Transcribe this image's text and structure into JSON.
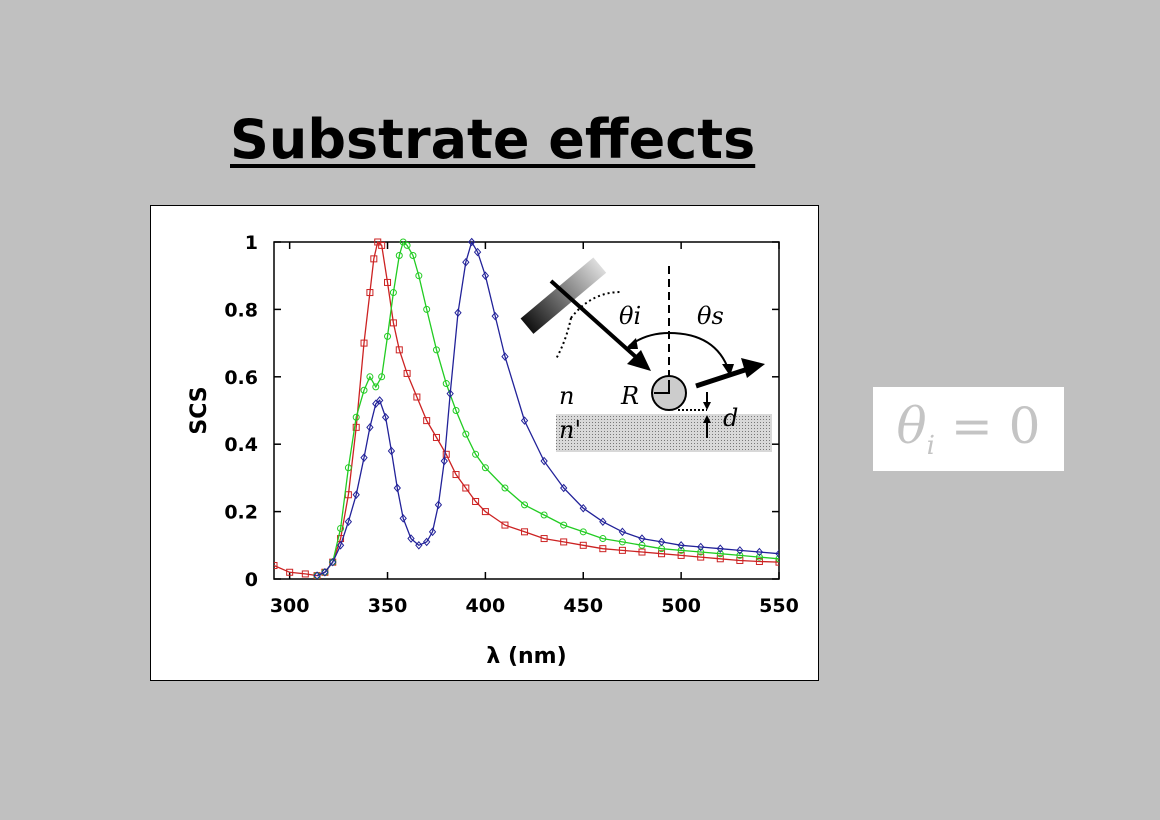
{
  "slide": {
    "title": "Substrate effects",
    "formula": {
      "symbol": "θ",
      "subscript": "i",
      "relation": "= 0"
    }
  },
  "chart_data": {
    "type": "line",
    "xlabel": "λ (nm)",
    "ylabel": "SCS",
    "xlim": [
      292,
      550
    ],
    "ylim": [
      0,
      1
    ],
    "x_ticks": [
      "300",
      "350",
      "400",
      "450",
      "500",
      "550"
    ],
    "x_tick_values": [
      300,
      350,
      400,
      450,
      500,
      550
    ],
    "y_ticks": [
      "0",
      "0.2",
      "0.4",
      "0.6",
      "0.8",
      "1"
    ],
    "y_tick_values": [
      0,
      0.2,
      0.4,
      0.6,
      0.8,
      1
    ],
    "grid": false,
    "legend": "none",
    "series": [
      {
        "color": "#cc2222",
        "marker": "square",
        "points": [
          [
            292,
            0.04
          ],
          [
            300,
            0.02
          ],
          [
            308,
            0.015
          ],
          [
            314,
            0.01
          ],
          [
            318,
            0.02
          ],
          [
            322,
            0.05
          ],
          [
            326,
            0.12
          ],
          [
            330,
            0.25
          ],
          [
            334,
            0.45
          ],
          [
            338,
            0.7
          ],
          [
            341,
            0.85
          ],
          [
            343,
            0.95
          ],
          [
            345,
            1.0
          ],
          [
            347,
            0.99
          ],
          [
            350,
            0.88
          ],
          [
            353,
            0.76
          ],
          [
            356,
            0.68
          ],
          [
            360,
            0.61
          ],
          [
            365,
            0.54
          ],
          [
            370,
            0.47
          ],
          [
            375,
            0.42
          ],
          [
            380,
            0.37
          ],
          [
            385,
            0.31
          ],
          [
            390,
            0.27
          ],
          [
            395,
            0.23
          ],
          [
            400,
            0.2
          ],
          [
            410,
            0.16
          ],
          [
            420,
            0.14
          ],
          [
            430,
            0.12
          ],
          [
            440,
            0.11
          ],
          [
            450,
            0.1
          ],
          [
            460,
            0.09
          ],
          [
            470,
            0.085
          ],
          [
            480,
            0.08
          ],
          [
            490,
            0.075
          ],
          [
            500,
            0.07
          ],
          [
            510,
            0.065
          ],
          [
            520,
            0.06
          ],
          [
            530,
            0.055
          ],
          [
            540,
            0.052
          ],
          [
            550,
            0.05
          ]
        ]
      },
      {
        "color": "#22cc22",
        "marker": "circle",
        "points": [
          [
            314,
            0.01
          ],
          [
            318,
            0.02
          ],
          [
            322,
            0.05
          ],
          [
            326,
            0.15
          ],
          [
            330,
            0.33
          ],
          [
            334,
            0.48
          ],
          [
            338,
            0.56
          ],
          [
            341,
            0.6
          ],
          [
            344,
            0.57
          ],
          [
            347,
            0.6
          ],
          [
            350,
            0.72
          ],
          [
            353,
            0.85
          ],
          [
            356,
            0.96
          ],
          [
            358,
            1.0
          ],
          [
            360,
            0.99
          ],
          [
            363,
            0.96
          ],
          [
            366,
            0.9
          ],
          [
            370,
            0.8
          ],
          [
            375,
            0.68
          ],
          [
            380,
            0.58
          ],
          [
            385,
            0.5
          ],
          [
            390,
            0.43
          ],
          [
            395,
            0.37
          ],
          [
            400,
            0.33
          ],
          [
            410,
            0.27
          ],
          [
            420,
            0.22
          ],
          [
            430,
            0.19
          ],
          [
            440,
            0.16
          ],
          [
            450,
            0.14
          ],
          [
            460,
            0.12
          ],
          [
            470,
            0.11
          ],
          [
            480,
            0.1
          ],
          [
            490,
            0.09
          ],
          [
            500,
            0.085
          ],
          [
            510,
            0.08
          ],
          [
            520,
            0.075
          ],
          [
            530,
            0.07
          ],
          [
            540,
            0.065
          ],
          [
            550,
            0.06
          ]
        ]
      },
      {
        "color": "#222299",
        "marker": "diamond",
        "points": [
          [
            314,
            0.01
          ],
          [
            318,
            0.02
          ],
          [
            322,
            0.05
          ],
          [
            326,
            0.1
          ],
          [
            330,
            0.17
          ],
          [
            334,
            0.25
          ],
          [
            338,
            0.36
          ],
          [
            341,
            0.45
          ],
          [
            344,
            0.52
          ],
          [
            346,
            0.53
          ],
          [
            349,
            0.48
          ],
          [
            352,
            0.38
          ],
          [
            355,
            0.27
          ],
          [
            358,
            0.18
          ],
          [
            362,
            0.12
          ],
          [
            366,
            0.1
          ],
          [
            370,
            0.11
          ],
          [
            373,
            0.14
          ],
          [
            376,
            0.22
          ],
          [
            379,
            0.35
          ],
          [
            382,
            0.55
          ],
          [
            386,
            0.79
          ],
          [
            390,
            0.94
          ],
          [
            393,
            1.0
          ],
          [
            396,
            0.97
          ],
          [
            400,
            0.9
          ],
          [
            405,
            0.78
          ],
          [
            410,
            0.66
          ],
          [
            420,
            0.47
          ],
          [
            430,
            0.35
          ],
          [
            440,
            0.27
          ],
          [
            450,
            0.21
          ],
          [
            460,
            0.17
          ],
          [
            470,
            0.14
          ],
          [
            480,
            0.12
          ],
          [
            490,
            0.11
          ],
          [
            500,
            0.1
          ],
          [
            510,
            0.095
          ],
          [
            520,
            0.09
          ],
          [
            530,
            0.085
          ],
          [
            540,
            0.08
          ],
          [
            550,
            0.075
          ]
        ]
      }
    ]
  },
  "diagram": {
    "labels": {
      "theta_i": "θi",
      "theta_s": "θs",
      "n": "n",
      "R": "R",
      "n_prime": "n'",
      "d": "d"
    }
  }
}
